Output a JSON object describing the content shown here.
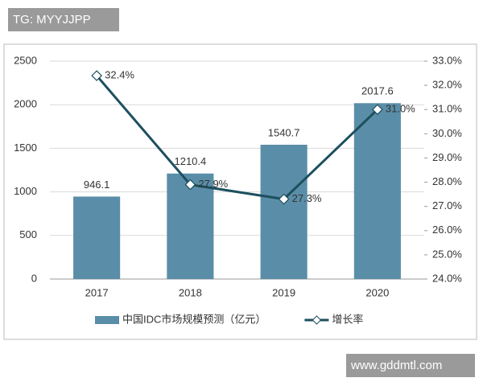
{
  "watermarks": [
    "TG: MYYJJPP",
    "www.gddmtl.com"
  ],
  "chart_data": {
    "type": "bar",
    "categories": [
      "2017",
      "2018",
      "2019",
      "2020"
    ],
    "series": [
      {
        "name": "中国IDC市场规模预测（亿元）",
        "type": "bar",
        "color": "#5a8ea8",
        "values": [
          946.1,
          1210.4,
          1540.7,
          2017.6
        ]
      },
      {
        "name": "增长率",
        "type": "line",
        "axis": "y2",
        "color": "#1d4f5e",
        "values": [
          32.4,
          27.9,
          27.3,
          31.0
        ],
        "value_labels": [
          "32.4%",
          "27.9%",
          "27.3%",
          "31.0%"
        ]
      }
    ],
    "ylim": [
      0,
      2500
    ],
    "yticks": [
      0,
      500,
      1000,
      1500,
      2000,
      2500
    ],
    "y2lim": [
      24,
      33
    ],
    "y2ticks": [
      {
        "value": 24,
        "label": "24.0%"
      },
      {
        "value": 25,
        "label": "25.0%"
      },
      {
        "value": 26,
        "label": "26.0%"
      },
      {
        "value": 27,
        "label": "27.0%"
      },
      {
        "value": 28,
        "label": "28.0%"
      },
      {
        "value": 29,
        "label": "29.0%"
      },
      {
        "value": 30,
        "label": "30.0%"
      },
      {
        "value": 31,
        "label": "31.0%"
      },
      {
        "value": 32,
        "label": "32.0%"
      },
      {
        "value": 33,
        "label": "33.0%"
      }
    ],
    "grid": true,
    "legend": "bottom"
  }
}
